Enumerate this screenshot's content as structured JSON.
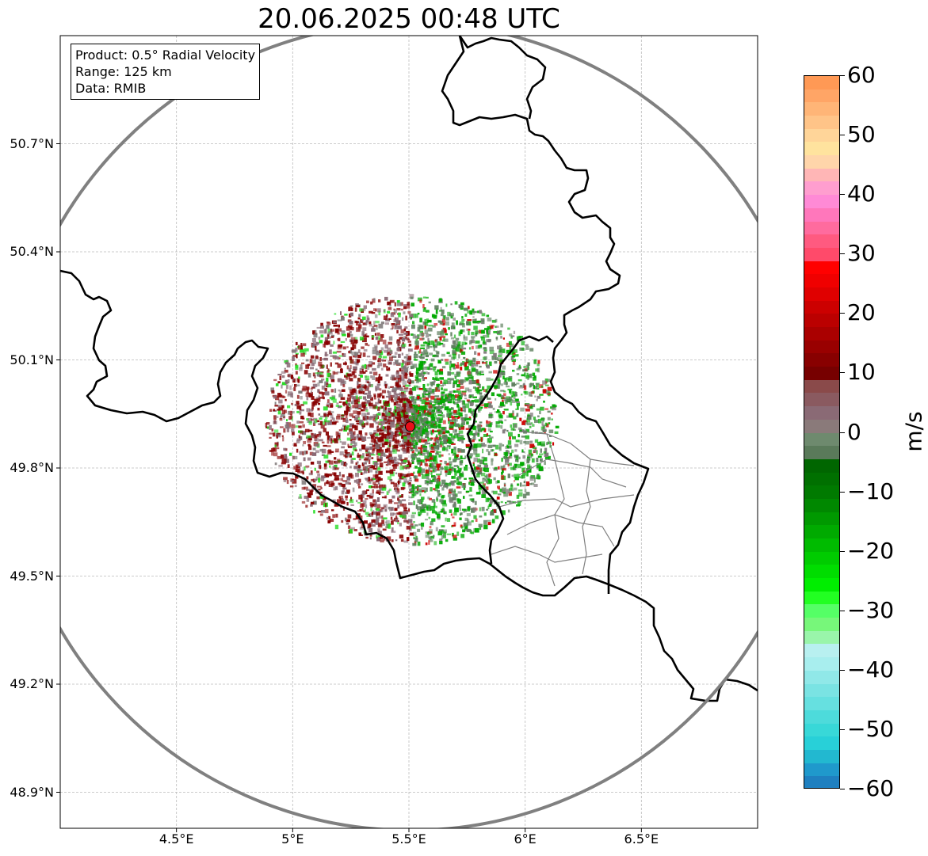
{
  "title": "20.06.2025 00:48 UTC",
  "info": {
    "product": "Product: 0.5° Radial Velocity",
    "range": "Range: 125 km",
    "source": "Data: RMIB"
  },
  "axes": {
    "x_ticks": [
      "4.5°E",
      "5°E",
      "5.5°E",
      "6°E",
      "6.5°E"
    ],
    "x_values": [
      4.5,
      5.0,
      5.5,
      6.0,
      6.5
    ],
    "y_ticks": [
      "50.7°N",
      "50.4°N",
      "50.1°N",
      "49.8°N",
      "49.5°N",
      "49.2°N",
      "48.9°N"
    ],
    "y_values": [
      50.7,
      50.4,
      50.1,
      49.8,
      49.5,
      49.2,
      48.9
    ],
    "xlim": [
      4.0,
      7.0
    ],
    "ylim": [
      48.8,
      51.0
    ],
    "grid": true
  },
  "radar": {
    "lon": 5.505,
    "lat": 49.915,
    "range_km": 125,
    "site_marker_color": "#e8101a"
  },
  "colorbar": {
    "unit": "m/s",
    "min": -60,
    "max": 60,
    "tick_labels": [
      "60",
      "50",
      "40",
      "30",
      "20",
      "10",
      "0",
      "−10",
      "−20",
      "−30",
      "−40",
      "−50",
      "−60"
    ],
    "tick_values": [
      60,
      50,
      40,
      30,
      20,
      10,
      0,
      -10,
      -20,
      -30,
      -40,
      -50,
      -60
    ],
    "colors_top_to_bottom": [
      "#ff9955",
      "#ffa566",
      "#ffb577",
      "#ffc488",
      "#ffd599",
      "#ffe39e",
      "#ffd5aa",
      "#ffb6b6",
      "#ff9ecf",
      "#ff8ad6",
      "#ff77bb",
      "#ff6b9e",
      "#ff5a80",
      "#ff4a6a",
      "#ff0000",
      "#f00000",
      "#e00000",
      "#cc0000",
      "#bb0000",
      "#aa0000",
      "#990000",
      "#880000",
      "#770000",
      "#8a4a4a",
      "#8a5a60",
      "#8a6a75",
      "#8a7a7a",
      "#6e8a6e",
      "#5a7a5a",
      "#006600",
      "#007000",
      "#007a00",
      "#008800",
      "#009900",
      "#00aa00",
      "#00bb00",
      "#00cc00",
      "#00dd00",
      "#00ee00",
      "#22ff22",
      "#55ff66",
      "#77f77a",
      "#99f5aa",
      "#b8f0f0",
      "#a8eeee",
      "#90e8e8",
      "#7ae3e3",
      "#66e0e0",
      "#4ddbdb",
      "#38d8d8",
      "#28d0d8",
      "#22b8d0",
      "#1f99cc",
      "#1f80c0"
    ]
  },
  "velocity_legend": {
    "inbound_color": "#00aa00",
    "outbound_color": "#880000",
    "near_zero_color": "#7f7a7a"
  }
}
